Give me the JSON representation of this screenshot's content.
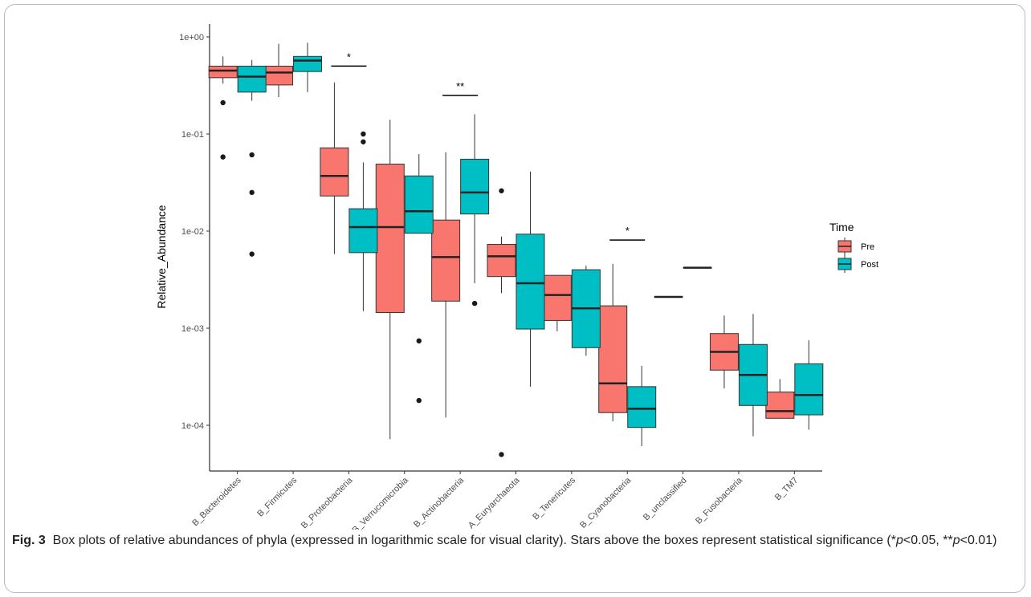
{
  "chart_data": {
    "type": "box",
    "ylabel": "Relative_Abundance",
    "yscale": "log",
    "ylim": [
      3e-05,
      1.3
    ],
    "y_ticks": [
      1,
      0.1,
      0.01,
      0.001,
      0.0001
    ],
    "y_tick_labels": [
      "1e+00",
      "1e-01",
      "1e-02",
      "1e-03",
      "1e-04"
    ],
    "categories": [
      "B_Bacteroidetes",
      "B_Firmicutes",
      "B_Proteobacteria",
      "B_Verrucomicrobia",
      "B_Actinobacteria",
      "A_Euryarchaeota",
      "B_Tenericutes",
      "B_Cyanobacteria",
      "B_unclassified",
      "B_Fusobacteria",
      "B_TM7"
    ],
    "legend_title": "Time",
    "legend_position": "right",
    "series": [
      {
        "name": "Pre",
        "color": "#F8766D",
        "boxes": [
          {
            "wlo": 0.33,
            "q1": 0.38,
            "med": 0.45,
            "q3": 0.5,
            "whi": 0.63,
            "outliers": [
              0.21,
              0.058
            ]
          },
          {
            "wlo": 0.24,
            "q1": 0.32,
            "med": 0.43,
            "q3": 0.5,
            "whi": 0.85,
            "outliers": []
          },
          {
            "wlo": 0.0058,
            "q1": 0.023,
            "med": 0.037,
            "q3": 0.072,
            "whi": 0.34,
            "outliers": []
          },
          {
            "wlo": 7.2e-05,
            "q1": 0.00145,
            "med": 0.011,
            "q3": 0.049,
            "whi": 0.14,
            "outliers": []
          },
          {
            "wlo": 0.00012,
            "q1": 0.0019,
            "med": 0.0054,
            "q3": 0.013,
            "whi": 0.065,
            "outliers": []
          },
          {
            "wlo": 0.0023,
            "q1": 0.0034,
            "med": 0.0055,
            "q3": 0.0073,
            "whi": 0.0088,
            "outliers": [
              0.026,
              5e-05
            ]
          },
          {
            "wlo": 0.00093,
            "q1": 0.0012,
            "med": 0.0022,
            "q3": 0.0035,
            "whi": 0.0035,
            "outliers": []
          },
          {
            "wlo": 0.00011,
            "q1": 0.000135,
            "med": 0.00027,
            "q3": 0.0017,
            "whi": 0.0046,
            "outliers": []
          },
          {
            "wlo": 0.0021,
            "q1": 0.0021,
            "med": 0.0021,
            "q3": 0.0021,
            "whi": 0.0021,
            "outliers": []
          },
          {
            "wlo": 0.00024,
            "q1": 0.00037,
            "med": 0.00057,
            "q3": 0.00088,
            "whi": 0.00135,
            "outliers": []
          },
          {
            "wlo": 0.000118,
            "q1": 0.000118,
            "med": 0.00014,
            "q3": 0.00022,
            "whi": 0.0003,
            "outliers": []
          }
        ]
      },
      {
        "name": "Post",
        "color": "#00BFC4",
        "boxes": [
          {
            "wlo": 0.22,
            "q1": 0.27,
            "med": 0.39,
            "q3": 0.5,
            "whi": 0.58,
            "outliers": [
              0.061,
              0.025,
              0.0058
            ]
          },
          {
            "wlo": 0.27,
            "q1": 0.44,
            "med": 0.57,
            "q3": 0.63,
            "whi": 0.87,
            "outliers": []
          },
          {
            "wlo": 0.0015,
            "q1": 0.006,
            "med": 0.011,
            "q3": 0.017,
            "whi": 0.051,
            "outliers": [
              0.1,
              0.083
            ]
          },
          {
            "wlo": 0.0095,
            "q1": 0.0095,
            "med": 0.016,
            "q3": 0.037,
            "whi": 0.062,
            "outliers": [
              0.00074,
              0.00018
            ]
          },
          {
            "wlo": 0.0029,
            "q1": 0.015,
            "med": 0.025,
            "q3": 0.055,
            "whi": 0.16,
            "outliers": [
              0.0018
            ]
          },
          {
            "wlo": 0.00025,
            "q1": 0.00098,
            "med": 0.0029,
            "q3": 0.0093,
            "whi": 0.041,
            "outliers": []
          },
          {
            "wlo": 0.00052,
            "q1": 0.00063,
            "med": 0.0016,
            "q3": 0.004,
            "whi": 0.0044,
            "outliers": []
          },
          {
            "wlo": 6.1e-05,
            "q1": 9.5e-05,
            "med": 0.000148,
            "q3": 0.00025,
            "whi": 0.00041,
            "outliers": []
          },
          {
            "wlo": 0.0042,
            "q1": 0.0042,
            "med": 0.0042,
            "q3": 0.0042,
            "whi": 0.0042,
            "outliers": []
          },
          {
            "wlo": 7.7e-05,
            "q1": 0.00016,
            "med": 0.00033,
            "q3": 0.00068,
            "whi": 0.0014,
            "outliers": []
          },
          {
            "wlo": 9e-05,
            "q1": 0.000128,
            "med": 0.000205,
            "q3": 0.00043,
            "whi": 0.00075,
            "outliers": []
          }
        ]
      }
    ],
    "significance": [
      {
        "category": "B_Proteobacteria",
        "label": "*",
        "y": 0.5
      },
      {
        "category": "B_Actinobacteria",
        "label": "**",
        "y": 0.25
      },
      {
        "category": "B_Cyanobacteria",
        "label": "*",
        "y": 0.0081
      }
    ]
  },
  "caption": {
    "fig_label": "Fig. 3",
    "text_1": "Box plots of relative abundances of phyla (expressed in logarithmic scale for visual clarity). Stars above the boxes represent statistical significance (*",
    "p_1": "p",
    "text_2": "<0.05, **",
    "p_2": "p",
    "text_3": "<0.01)"
  }
}
